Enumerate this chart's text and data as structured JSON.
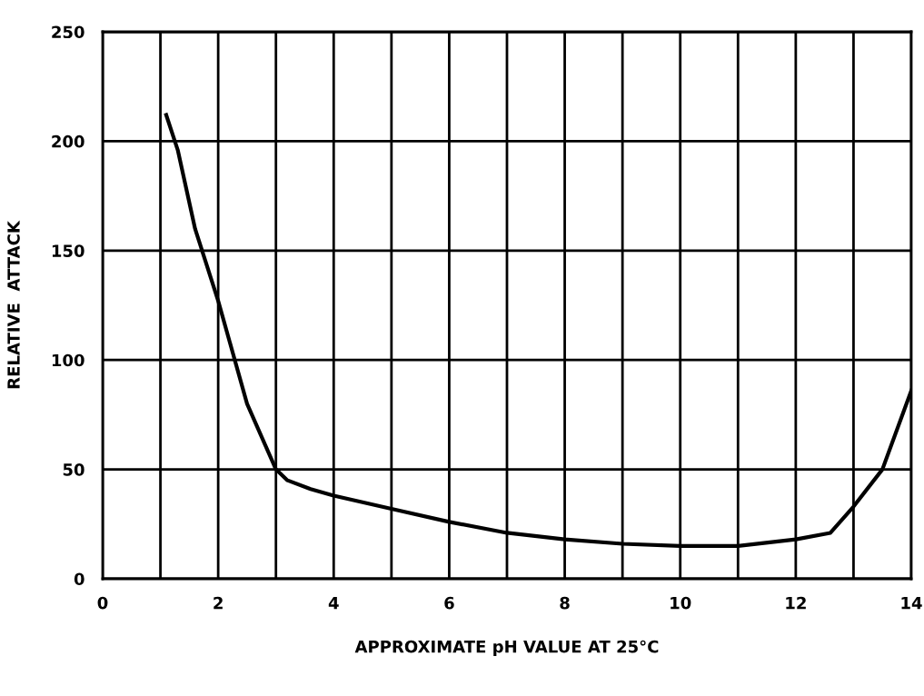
{
  "chart_data": {
    "type": "line",
    "xlabel": "APPROXIMATE pH VALUE AT 25°C",
    "ylabel": "RELATIVE  ATTACK",
    "x": [
      1.1,
      1.3,
      1.6,
      2.0,
      2.5,
      3.0,
      3.2,
      3.6,
      4.0,
      5.0,
      6.0,
      7.0,
      8.0,
      9.0,
      10.0,
      11.0,
      12.0,
      12.6,
      13.0,
      13.5,
      14.0
    ],
    "series": [
      {
        "color": "#000000",
        "values": [
          212,
          196,
          160,
          127,
          80,
          50,
          45,
          41,
          38,
          32,
          26,
          21,
          18,
          16,
          15,
          15,
          18,
          21,
          33,
          50,
          86
        ]
      }
    ],
    "xlim": [
      0,
      14
    ],
    "ylim": [
      0,
      250
    ],
    "xticks": [
      0,
      {
        "value": 1,
        "label": null
      },
      2,
      {
        "value": 3,
        "label": null
      },
      4,
      {
        "value": 5,
        "label": null
      },
      6,
      {
        "value": 7,
        "label": null
      },
      8,
      {
        "value": 9,
        "label": null
      },
      10,
      {
        "value": 11,
        "label": null
      },
      12,
      {
        "value": 13,
        "label": null
      },
      14
    ],
    "yticks": [
      0,
      50,
      100,
      150,
      200,
      250
    ],
    "grid": true,
    "marker": "none",
    "line_style": "solid",
    "legend": false
  }
}
